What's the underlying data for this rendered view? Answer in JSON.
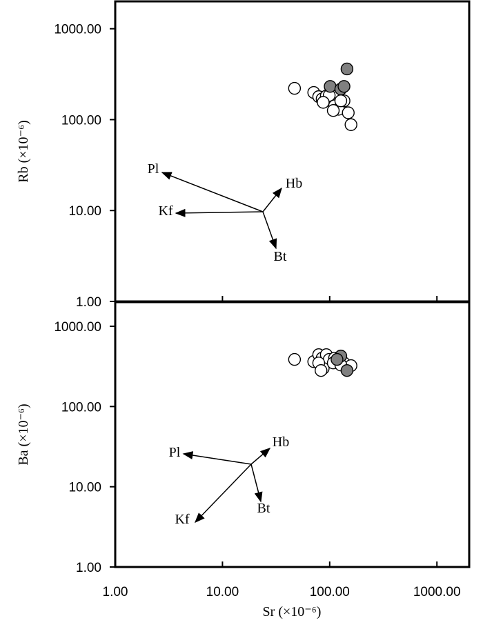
{
  "chart_data": [
    {
      "type": "scatter",
      "y_label": "Rb (×10⁻⁶)",
      "log_x": true,
      "log_y": true,
      "xlim": [
        1,
        2000
      ],
      "ylim": [
        1,
        2000
      ],
      "yticks": [
        {
          "value": 1,
          "label": "1.00"
        },
        {
          "value": 10,
          "label": "10.00"
        },
        {
          "value": 100,
          "label": "100.00"
        },
        {
          "value": 1000,
          "label": "1000.00"
        }
      ],
      "annotations": [
        "Pl",
        "Kf",
        "Hb",
        "Bt"
      ],
      "series": [
        {
          "color": "#ffffff",
          "x": [
            47,
            71,
            79,
            85,
            93,
            99,
            111,
            121,
            136,
            149,
            158,
            127,
            108,
            87
          ],
          "values": [
            221,
            199,
            179,
            169,
            182,
            185,
            142,
            130,
            161,
            119,
            88,
            161,
            126,
            155
          ]
        },
        {
          "color": "#808080",
          "x": [
            145,
            101,
            127,
            136
          ],
          "values": [
            361,
            232,
            217,
            232
          ]
        }
      ]
    },
    {
      "type": "scatter",
      "x_label": "Sr (×10⁻⁶)",
      "y_label": "Ba (×10⁻⁶)",
      "log_x": true,
      "log_y": true,
      "xlim": [
        1,
        2000
      ],
      "ylim": [
        1,
        2000
      ],
      "xticks": [
        {
          "value": 1,
          "label": "1.00"
        },
        {
          "value": 10,
          "label": "10.00"
        },
        {
          "value": 100,
          "label": "100.00"
        },
        {
          "value": 1000,
          "label": "1000.00"
        }
      ],
      "yticks": [
        {
          "value": 1,
          "label": "1.00"
        },
        {
          "value": 10,
          "label": "10.00"
        },
        {
          "value": 100,
          "label": "100.00"
        },
        {
          "value": 1000,
          "label": "1000.00"
        }
      ],
      "annotations": [
        "Pl",
        "Kf",
        "Hb",
        "Bt"
      ],
      "series": [
        {
          "color": "#ffffff",
          "x": [
            47,
            71,
            79,
            85,
            93,
            99,
            111,
            121,
            136,
            158,
            87,
            79,
            108,
            127,
            83
          ],
          "values": [
            386,
            363,
            443,
            401,
            443,
            386,
            401,
            363,
            349,
            323,
            298,
            349,
            349,
            329,
            281
          ]
        },
        {
          "color": "#808080",
          "x": [
            127,
            145,
            117
          ],
          "values": [
            426,
            281,
            386
          ]
        }
      ]
    }
  ]
}
